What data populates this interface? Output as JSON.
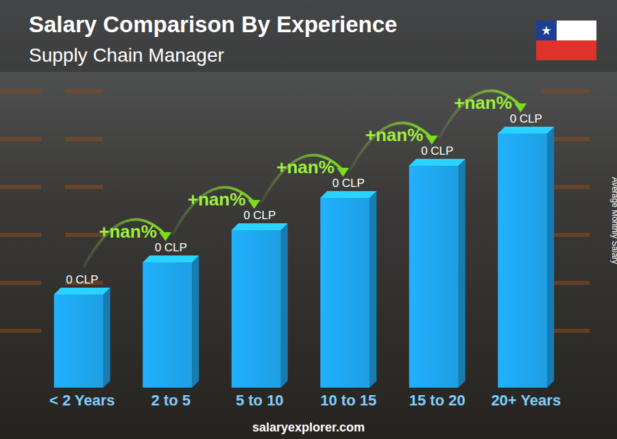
{
  "chart_data": {
    "type": "bar",
    "title": "Salary Comparison By Experience",
    "subtitle": "Supply Chain Manager",
    "y_label": "Average Monthly Salary",
    "categories": [
      "< 2 Years",
      "2 to 5",
      "5 to 10",
      "10 to 15",
      "15 to 20",
      "20+ Years"
    ],
    "values": [
      0,
      0,
      0,
      0,
      0,
      0
    ],
    "value_labels": [
      "0 CLP",
      "0 CLP",
      "0 CLP",
      "0 CLP",
      "0 CLP",
      "0 CLP"
    ],
    "change_labels": [
      "+nan%",
      "+nan%",
      "+nan%",
      "+nan%",
      "+nan%"
    ],
    "color": "#1e9fe3",
    "data_labels": true,
    "tick_labels": "x",
    "source": "salaryexplorer.com"
  }
}
